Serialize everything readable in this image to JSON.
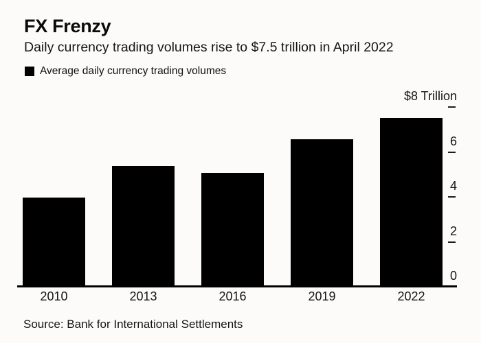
{
  "header": {
    "title": "FX Frenzy",
    "subtitle": "Daily currency trading volumes rise to $7.5 trillion in April 2022"
  },
  "legend": {
    "label": "Average daily currency trading volumes",
    "swatch_color": "#000000"
  },
  "chart_data": {
    "type": "bar",
    "title": "FX Frenzy",
    "subtitle": "Daily currency trading volumes rise to $7.5 trillion in April 2022",
    "series_name": "Average daily currency trading volumes",
    "categories": [
      "2010",
      "2013",
      "2016",
      "2019",
      "2022"
    ],
    "values": [
      3.97,
      5.36,
      5.07,
      6.58,
      7.5
    ],
    "unit": "trillion USD per day",
    "ylabel": "$8 Trillion",
    "ylim": [
      0,
      8
    ],
    "yticks": [
      0,
      2,
      4,
      6,
      8
    ],
    "ytick_labels": [
      "0",
      "2",
      "4",
      "6",
      "$8 Trillion"
    ],
    "axis_side": "right",
    "bar_color": "#000000",
    "grid": false,
    "legend_position": "top-left"
  },
  "source": {
    "text": "Source: Bank for International Settlements"
  }
}
